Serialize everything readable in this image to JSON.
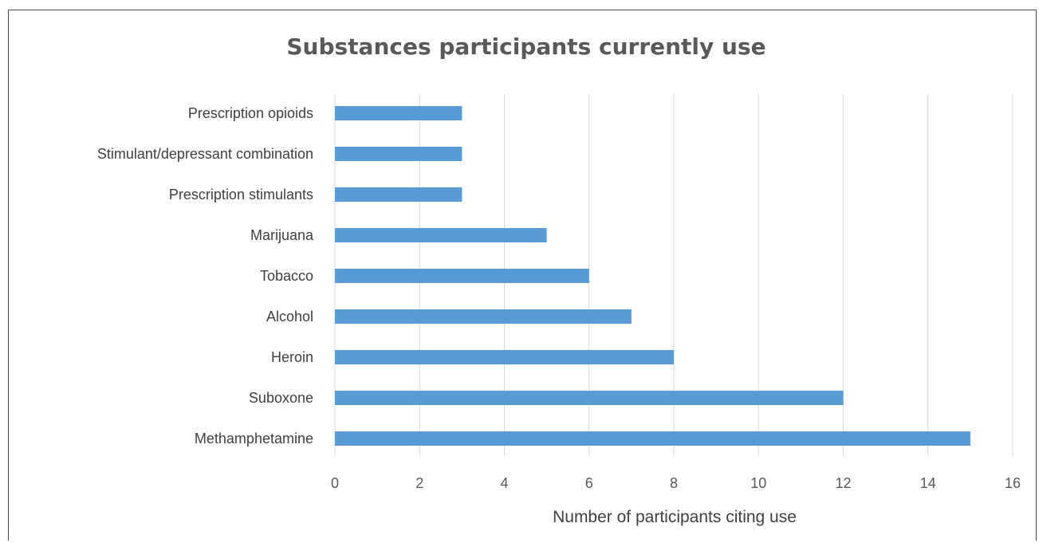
{
  "chart_data": {
    "type": "bar",
    "orientation": "horizontal",
    "title": "Substances participants currently use",
    "xlabel": "Number of participants citing use",
    "ylabel": "",
    "categories": [
      "Prescription opioids",
      "Stimulant/depressant combination",
      "Prescription stimulants",
      "Marijuana",
      "Tobacco",
      "Alcohol",
      "Heroin",
      "Suboxone",
      "Methamphetamine"
    ],
    "values": [
      3,
      3,
      3,
      5,
      6,
      7,
      8,
      12,
      15
    ],
    "xlim": [
      0,
      16
    ],
    "xticks": [
      "0",
      "2",
      "4",
      "6",
      "8",
      "10",
      "12",
      "14",
      "16"
    ],
    "grid": "vertical",
    "bar_color": "#5b9bd5",
    "legend": "none"
  }
}
